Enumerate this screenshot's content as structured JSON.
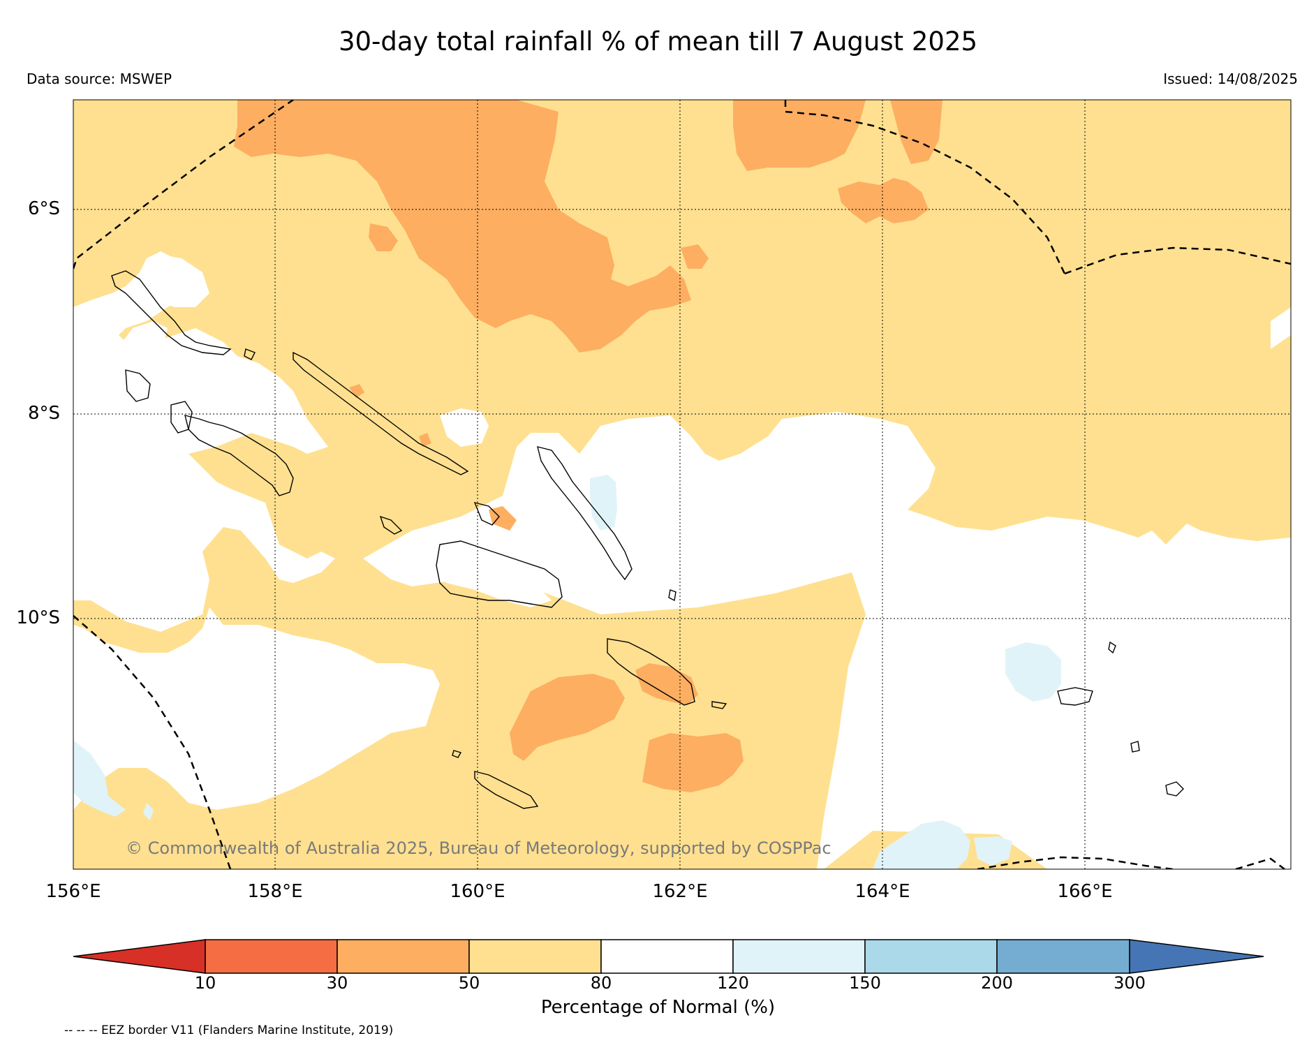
{
  "title": "30-day total rainfall % of mean till 7 August 2025",
  "data_source": "Data source: MSWEP",
  "issued": "Issued: 14/08/2025",
  "copyright": "© Commonwealth of Australia 2025, Bureau of Meteorology, supported by COSPPac",
  "lat_labels": [
    "6°S",
    "8°S",
    "10°S"
  ],
  "lon_labels": [
    "156°E",
    "158°E",
    "160°E",
    "162°E",
    "164°E",
    "166°E"
  ],
  "colorbar": {
    "label": "Percentage of Normal (%)",
    "ticks": [
      "10",
      "30",
      "50",
      "80",
      "120",
      "150",
      "200",
      "300"
    ],
    "colors": [
      "#d73027",
      "#f46d43",
      "#fdae61",
      "#fee090",
      "#ffffff",
      "#e0f3f8",
      "#abd9e9",
      "#74add1",
      "#4575b4"
    ],
    "class_ranges": [
      "<10",
      "10-30",
      "30-50",
      "50-80",
      "80-120",
      "120-150",
      "150-200",
      "200-300",
      ">300"
    ]
  },
  "eez_note": "-- -- -- EEZ border V11 (Flanders Marine Institute, 2019)",
  "map": {
    "region": "Solomon Islands",
    "lon_range": [
      156,
      168
    ],
    "lat_range": [
      -12.4,
      -4.9
    ],
    "gridlines": true
  }
}
